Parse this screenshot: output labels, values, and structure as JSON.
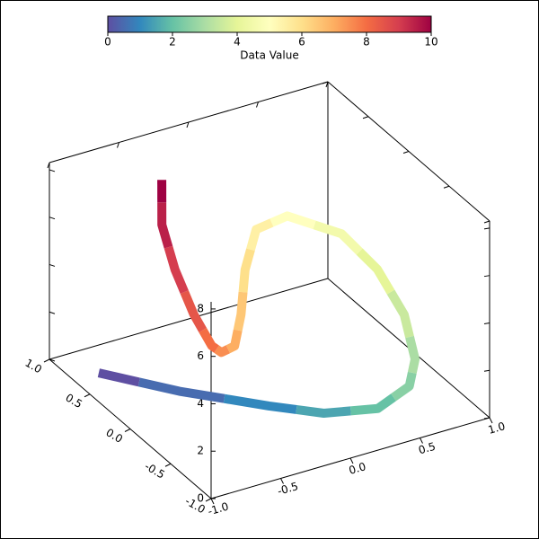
{
  "chart_data": {
    "type": "line3d",
    "x": [
      -0.82,
      -0.56,
      -0.23,
      -0.04,
      0.22,
      0.47,
      0.61,
      0.77,
      0.85,
      0.82,
      0.58,
      0.27,
      -0.1,
      -0.46,
      -0.75,
      -0.92,
      -0.99,
      -0.95,
      -0.83,
      -0.68,
      -0.46
    ],
    "y": [
      0.7,
      0.15,
      -0.39,
      -0.74,
      -0.96,
      -0.92,
      -0.75,
      -0.34,
      0.13,
      0.52,
      0.78,
      0.63,
      0.13,
      -0.44,
      -0.86,
      -0.99,
      -0.99,
      -0.7,
      -0.26,
      0.16,
      0.54
    ],
    "z": [
      0,
      0.4,
      0.8,
      1.2,
      1.6,
      2.0,
      2.4,
      2.8,
      3.2,
      3.6,
      4.0,
      4.4,
      4.8,
      5.2,
      5.6,
      6.0,
      6.4,
      6.8,
      7.2,
      7.6,
      8.0
    ],
    "values": [
      0,
      0.5,
      1,
      1.5,
      2,
      2.5,
      3,
      3.5,
      4,
      4.5,
      5,
      5.5,
      6,
      6.5,
      7,
      7.5,
      8,
      8.5,
      9,
      9.5,
      10
    ],
    "colormap": [
      "#5e4fa2",
      "#3288bd",
      "#66c2a5",
      "#abdda4",
      "#e6f598",
      "#ffffbf",
      "#fee08b",
      "#fdae61",
      "#f46d43",
      "#d53e4f",
      "#9e0142"
    ],
    "xlim": [
      -1,
      1
    ],
    "ylim": [
      -1,
      1
    ],
    "zlim": [
      0,
      8.3
    ],
    "xticks": [
      {
        "value": -1,
        "label": "-1.0"
      },
      {
        "value": -0.5,
        "label": "-0.5"
      },
      {
        "value": 0,
        "label": "0.0"
      },
      {
        "value": 0.5,
        "label": "0.5"
      },
      {
        "value": 1,
        "label": "1.0"
      }
    ],
    "yticks": [
      {
        "value": -1,
        "label": "-1.0"
      },
      {
        "value": -0.5,
        "label": "-0.5"
      },
      {
        "value": 0,
        "label": "0.0"
      },
      {
        "value": 0.5,
        "label": "0.5"
      },
      {
        "value": 1,
        "label": "1.0"
      }
    ],
    "zticks": [
      0,
      2,
      4,
      6,
      8
    ],
    "colorbar": {
      "label": "Data Value",
      "lim": [
        0,
        10
      ],
      "ticks": [
        0,
        2,
        4,
        6,
        8,
        10
      ]
    }
  }
}
